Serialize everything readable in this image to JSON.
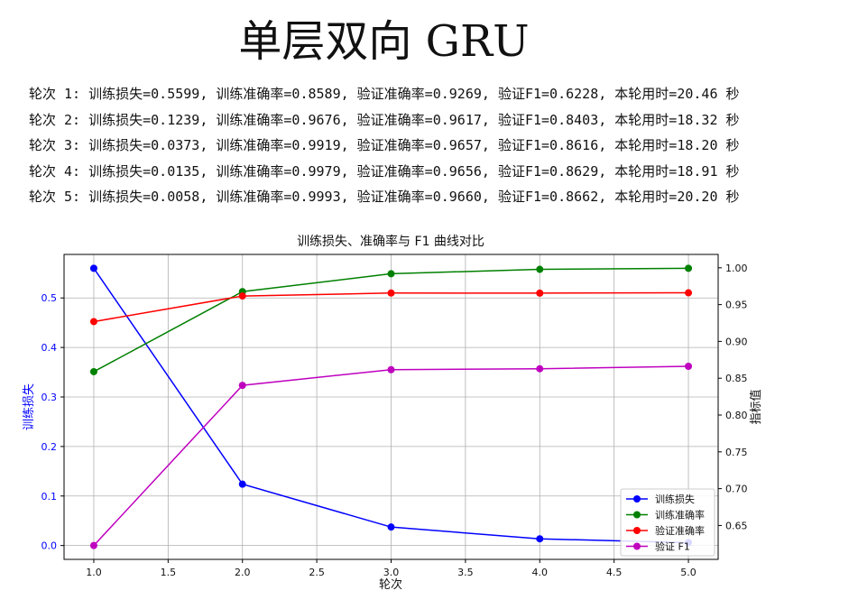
{
  "page_title": "单层双向 GRU",
  "log_lines": [
    "轮次 1: 训练损失=0.5599, 训练准确率=0.8589, 验证准确率=0.9269, 验证F1=0.6228, 本轮用时=20.46 秒",
    "轮次 2: 训练损失=0.1239, 训练准确率=0.9676, 验证准确率=0.9617, 验证F1=0.8403, 本轮用时=18.32 秒",
    "轮次 3: 训练损失=0.0373, 训练准确率=0.9919, 验证准确率=0.9657, 验证F1=0.8616, 本轮用时=18.20 秒",
    "轮次 4: 训练损失=0.0135, 训练准确率=0.9979, 验证准确率=0.9656, 验证F1=0.8629, 本轮用时=18.91 秒",
    "轮次 5: 训练损失=0.0058, 训练准确率=0.9993, 验证准确率=0.9660, 验证F1=0.8662, 本轮用时=20.20 秒"
  ],
  "chart_data": {
    "type": "line",
    "title": "训练损失、准确率与 F1 曲线对比",
    "xlabel": "轮次",
    "ylabel_left": "训练损失",
    "ylabel_right": "指标值",
    "x": [
      1,
      2,
      3,
      4,
      5
    ],
    "xticks": [
      "1.0",
      "1.5",
      "2.0",
      "2.5",
      "3.0",
      "3.5",
      "4.0",
      "4.5",
      "5.0"
    ],
    "yticks_left": [
      "0.0",
      "0.1",
      "0.2",
      "0.3",
      "0.4",
      "0.5"
    ],
    "yticks_right": [
      "0.65",
      "0.70",
      "0.75",
      "0.80",
      "0.85",
      "0.90",
      "0.95",
      "1.00"
    ],
    "xlim": [
      0.8,
      5.2
    ],
    "ylim_left": [
      -0.02799,
      0.58789
    ],
    "ylim_right": [
      0.60395,
      1.01815
    ],
    "grid": true,
    "legend_position": "lower-right",
    "series": [
      {
        "name": "训练损失",
        "axis": "left",
        "color": "#0000ff",
        "values": [
          0.5599,
          0.1239,
          0.0373,
          0.0135,
          0.0058
        ]
      },
      {
        "name": "训练准确率",
        "axis": "right",
        "color": "#008000",
        "values": [
          0.8589,
          0.9676,
          0.9919,
          0.9979,
          0.9993
        ]
      },
      {
        "name": "验证准确率",
        "axis": "right",
        "color": "#ff0000",
        "values": [
          0.9269,
          0.9617,
          0.9657,
          0.9656,
          0.966
        ]
      },
      {
        "name": "验证 F1",
        "axis": "right",
        "color": "#bf00bf",
        "values": [
          0.6228,
          0.8403,
          0.8616,
          0.8629,
          0.8662
        ]
      }
    ]
  }
}
